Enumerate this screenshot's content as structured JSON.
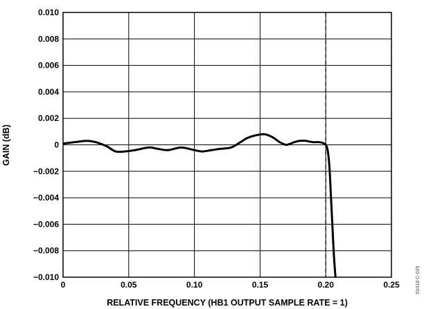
{
  "chart_data": {
    "type": "line",
    "title": "",
    "xlabel": "RELATIVE FREQUENCY (HB1 OUTPUT SAMPLE RATE = 1)",
    "ylabel": "GAIN (dB)",
    "xlim": [
      0,
      0.25
    ],
    "ylim": [
      -0.01,
      0.01
    ],
    "grid": true,
    "x_ticks": [
      "0",
      "0.05",
      "0.10",
      "0.15",
      "0.20",
      "0.25"
    ],
    "y_ticks": [
      "0.010",
      "0.008",
      "0.006",
      "0.004",
      "0.002",
      "0",
      "−0.002",
      "−0.004",
      "−0.006",
      "−0.008",
      "−0.010"
    ],
    "reference_line": {
      "x": 0.2,
      "style": "dashed"
    },
    "series": [
      {
        "x": [
          0,
          0.009,
          0.018,
          0.025,
          0.033,
          0.04,
          0.047,
          0.055,
          0.065,
          0.072,
          0.08,
          0.09,
          0.1,
          0.106,
          0.113,
          0.12,
          0.128,
          0.135,
          0.14,
          0.146,
          0.153,
          0.159,
          0.165,
          0.17,
          0.176,
          0.18,
          0.185,
          0.19,
          0.195,
          0.199,
          0.2,
          0.201,
          0.202,
          0.203,
          0.204,
          0.205,
          0.206,
          0.207,
          0.208
        ],
        "y": [
          0.0001,
          0.0002,
          0.0003,
          0.0002,
          -0.0001,
          -0.0005,
          -0.0005,
          -0.0004,
          -0.0002,
          -0.0003,
          -0.0004,
          -0.0002,
          -0.0004,
          -0.0005,
          -0.0004,
          -0.0003,
          -0.0002,
          0.0002,
          0.0005,
          0.0007,
          0.0008,
          0.0006,
          0.0002,
          0.0,
          0.0002,
          0.0003,
          0.0003,
          0.0002,
          0.0002,
          0.0001,
          0.0,
          -0.0002,
          -0.0008,
          -0.002,
          -0.004,
          -0.006,
          -0.008,
          -0.0095,
          -0.0105
        ]
      }
    ]
  },
  "watermark": "01018-C-025"
}
